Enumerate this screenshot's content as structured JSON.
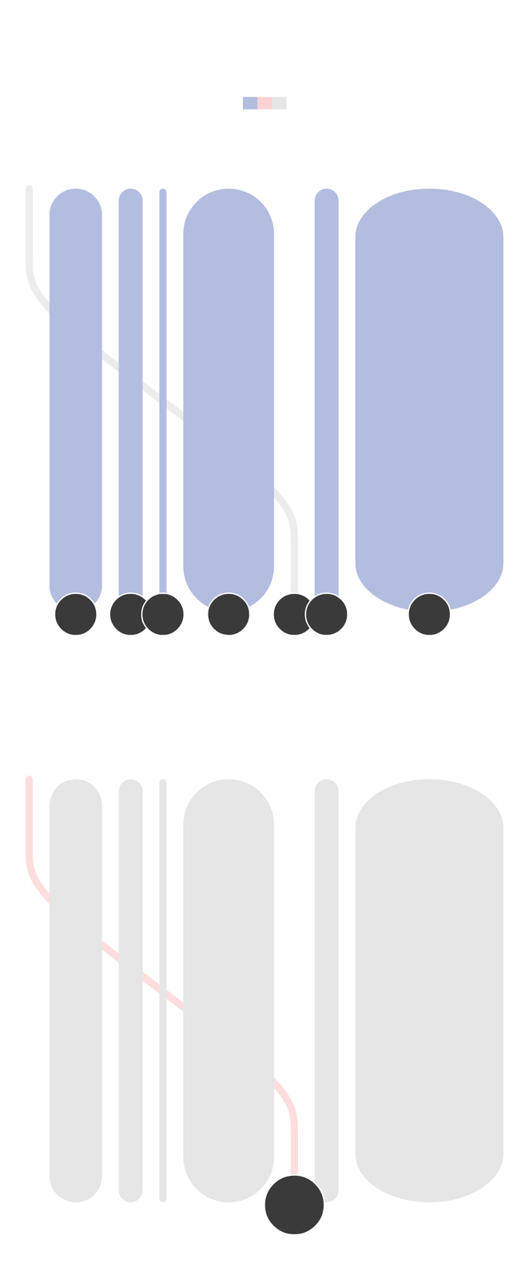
{
  "chart_data": [
    {
      "type": "flow",
      "tick_labels": false,
      "legend": "top",
      "series": [
        {
          "type": "bar",
          "color": "#b3bde0",
          "values": [
            null,
            11,
            5,
            1.5,
            19,
            null,
            5,
            31
          ]
        },
        {
          "type": "line",
          "color": "#e6e6e6",
          "values": [
            1.5,
            null,
            null,
            null,
            null,
            1.5,
            null,
            null
          ]
        }
      ]
    },
    {
      "type": "flow",
      "tick_labels": false,
      "series": [
        {
          "type": "bar",
          "color": "#e6e6e6",
          "values": [
            null,
            11,
            5,
            1.5,
            19,
            null,
            5,
            31
          ]
        },
        {
          "type": "line",
          "color": "#fcd2d2",
          "values": [
            1.5,
            null,
            null,
            null,
            null,
            1.5,
            null,
            null
          ]
        }
      ]
    }
  ]
}
